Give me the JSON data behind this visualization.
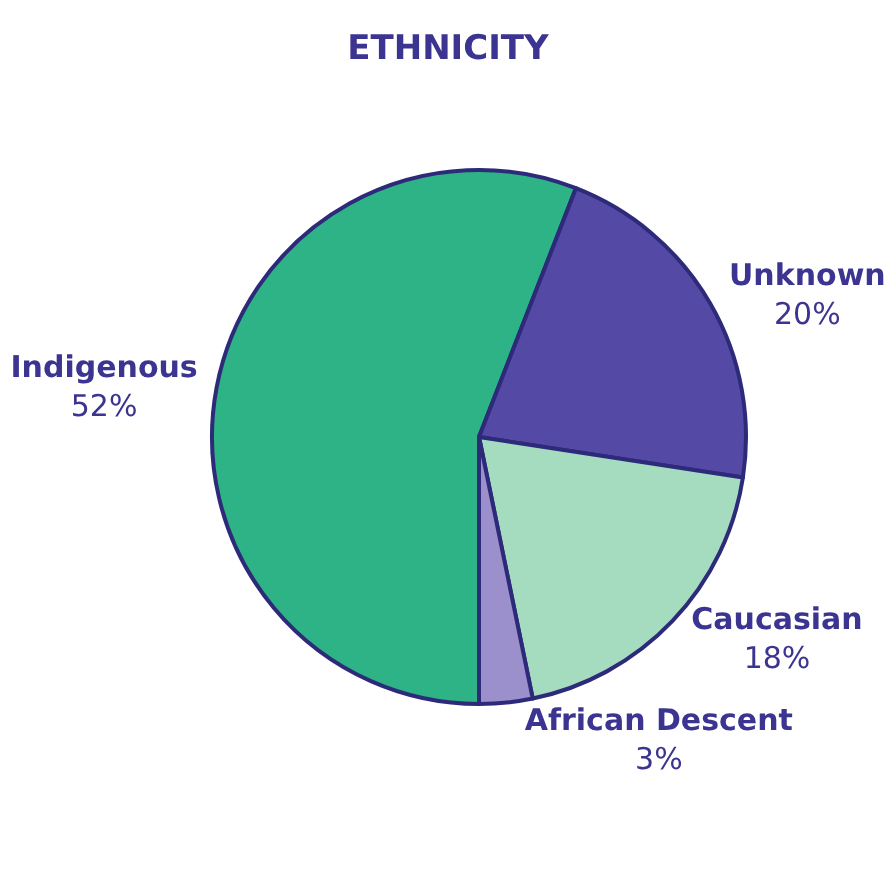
{
  "chart_data": {
    "type": "pie",
    "title": "ETHNICITY",
    "categories": [
      "Indigenous",
      "Unknown",
      "Caucasian",
      "African Descent"
    ],
    "values": [
      52,
      20,
      18,
      3
    ],
    "value_labels": [
      "52%",
      "20%",
      "18%",
      "3%"
    ],
    "colors": [
      "#2db386",
      "#5549a6",
      "#a5dcc0",
      "#9b90cc"
    ],
    "legend": false
  }
}
